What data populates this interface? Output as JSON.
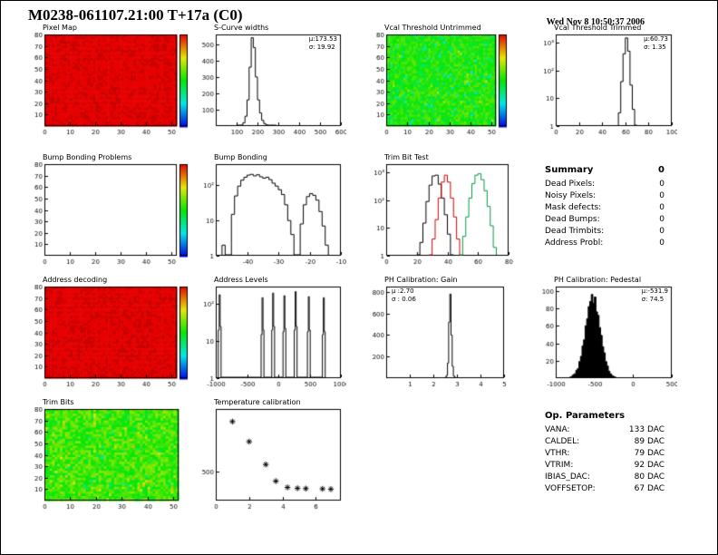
{
  "page": {
    "title": "M0238-061107.21:00 T+17a (C0)",
    "date": "Wed Nov  8 10:50:37 2006"
  },
  "summary": {
    "header": "Summary",
    "total": "0",
    "items": [
      {
        "label": "Dead Pixels:",
        "value": "0"
      },
      {
        "label": "Noisy Pixels:",
        "value": "0"
      },
      {
        "label": "Mask defects:",
        "value": "0"
      },
      {
        "label": "Dead Bumps:",
        "value": "0"
      },
      {
        "label": "Dead Trimbits:",
        "value": "0"
      },
      {
        "label": "Address Probl:",
        "value": "0"
      }
    ]
  },
  "op_parameters": {
    "header": "Op. Parameters",
    "items": [
      {
        "label": "VANA:",
        "value": "133 DAC"
      },
      {
        "label": "CALDEL:",
        "value": "89 DAC"
      },
      {
        "label": "VTHR:",
        "value": "79 DAC"
      },
      {
        "label": "VTRIM:",
        "value": "92 DAC"
      },
      {
        "label": "IBIAS_DAC:",
        "value": "80 DAC"
      },
      {
        "label": "VOFFSETOP:",
        "value": "67 DAC"
      }
    ]
  },
  "chart_data": [
    {
      "id": "pixel_map",
      "title": "Pixel Map",
      "type": "heatmap",
      "fill": "uniform-red",
      "xlim": [
        0,
        52
      ],
      "ylim": [
        0,
        80
      ],
      "xticks": [
        0,
        10,
        20,
        30,
        40,
        50
      ],
      "yticks": [
        10,
        20,
        30,
        40,
        50,
        60,
        70,
        80
      ],
      "colorbar": true
    },
    {
      "id": "scurve_widths",
      "title": "S-Curve widths",
      "type": "hist",
      "logy": false,
      "xlim": [
        0,
        600
      ],
      "ylim": [
        0,
        560
      ],
      "xticks": [
        100,
        200,
        300,
        400,
        500,
        600
      ],
      "yticks": [
        100,
        200,
        300,
        400,
        500
      ],
      "bin_width": 10,
      "bins": [
        [
          100,
          1
        ],
        [
          110,
          2
        ],
        [
          120,
          6
        ],
        [
          130,
          20
        ],
        [
          140,
          60
        ],
        [
          150,
          160
        ],
        [
          160,
          360
        ],
        [
          170,
          540
        ],
        [
          180,
          480
        ],
        [
          190,
          300
        ],
        [
          200,
          160
        ],
        [
          210,
          80
        ],
        [
          220,
          35
        ],
        [
          230,
          15
        ],
        [
          240,
          7
        ],
        [
          250,
          3
        ],
        [
          260,
          2
        ],
        [
          270,
          1
        ],
        [
          280,
          1
        ]
      ],
      "stats": {
        "mu": "μ:173.53",
        "sigma": "σ: 19.92"
      }
    },
    {
      "id": "vcal_untrimmed",
      "title": "Vcal Threshold Untrimmed",
      "type": "heatmap",
      "fill": "noise-green",
      "xlim": [
        0,
        52
      ],
      "ylim": [
        0,
        80
      ],
      "xticks": [
        0,
        10,
        20,
        30,
        40,
        50
      ],
      "yticks": [
        10,
        20,
        30,
        40,
        50,
        60,
        70,
        80
      ],
      "colorbar": true
    },
    {
      "id": "vcal_trimmed",
      "title": "Vcal Threshold Trimmed",
      "type": "hist",
      "logy": true,
      "xlim": [
        0,
        100
      ],
      "ylim": [
        1,
        2000
      ],
      "xticks": [
        0,
        20,
        40,
        60,
        80,
        100
      ],
      "yticks": [
        1,
        10,
        100,
        1000
      ],
      "bin_width": 2,
      "bins": [
        [
          54,
          3
        ],
        [
          56,
          40
        ],
        [
          58,
          400
        ],
        [
          60,
          1500
        ],
        [
          62,
          500
        ],
        [
          64,
          30
        ],
        [
          66,
          4
        ],
        [
          68,
          1
        ]
      ],
      "stats": {
        "mu": "μ:60.73",
        "sigma": "σ: 1.35"
      }
    },
    {
      "id": "bump_problems",
      "title": "Bump Bonding Problems",
      "type": "heatmap",
      "fill": "empty",
      "xlim": [
        0,
        52
      ],
      "ylim": [
        0,
        80
      ],
      "xticks": [
        0,
        10,
        20,
        30,
        40,
        50
      ],
      "yticks": [
        10,
        20,
        30,
        40,
        50,
        60,
        70,
        80
      ],
      "colorbar": true
    },
    {
      "id": "bump_bonding",
      "title": "Bump Bonding",
      "type": "hist",
      "logy": true,
      "xlim": [
        -50,
        -10
      ],
      "ylim": [
        1,
        400
      ],
      "xticks": [
        -40,
        -30,
        -20,
        -10
      ],
      "yticks": [
        1,
        10,
        100
      ],
      "bin_width": 1,
      "bins": [
        [
          -48,
          2
        ],
        [
          -45,
          15
        ],
        [
          -44,
          50
        ],
        [
          -43,
          95
        ],
        [
          -42,
          140
        ],
        [
          -41,
          170
        ],
        [
          -40,
          195
        ],
        [
          -39,
          205
        ],
        [
          -38,
          185
        ],
        [
          -37,
          200
        ],
        [
          -36,
          175
        ],
        [
          -35,
          160
        ],
        [
          -34,
          170
        ],
        [
          -33,
          145
        ],
        [
          -32,
          115
        ],
        [
          -31,
          95
        ],
        [
          -30,
          75
        ],
        [
          -29,
          55
        ],
        [
          -28,
          28
        ],
        [
          -27,
          10
        ],
        [
          -26,
          4
        ],
        [
          -23,
          8
        ],
        [
          -22,
          28
        ],
        [
          -21,
          48
        ],
        [
          -20,
          58
        ],
        [
          -19,
          52
        ],
        [
          -18,
          38
        ],
        [
          -17,
          18
        ],
        [
          -16,
          7
        ],
        [
          -15,
          2
        ]
      ]
    },
    {
      "id": "trim_bit_test",
      "title": "Trim Bit Test",
      "type": "hist-multi",
      "logy": true,
      "xlim": [
        0,
        80
      ],
      "ylim": [
        1,
        2000
      ],
      "xticks": [
        0,
        20,
        40,
        60,
        80
      ],
      "yticks": [
        1,
        10,
        100,
        1000
      ],
      "bin_width": 2,
      "series": [
        {
          "color": "#000000",
          "bins": [
            [
              20,
              1
            ],
            [
              22,
              3
            ],
            [
              24,
              15
            ],
            [
              26,
              90
            ],
            [
              28,
              350
            ],
            [
              30,
              750
            ],
            [
              32,
              800
            ],
            [
              34,
              380
            ],
            [
              36,
              120
            ],
            [
              38,
              30
            ],
            [
              40,
              6
            ],
            [
              42,
              1
            ]
          ]
        },
        {
          "color": "#cc0000",
          "bins": [
            [
              28,
              1
            ],
            [
              30,
              4
            ],
            [
              32,
              20
            ],
            [
              34,
              120
            ],
            [
              36,
              450
            ],
            [
              38,
              800
            ],
            [
              40,
              450
            ],
            [
              42,
              120
            ],
            [
              44,
              25
            ],
            [
              46,
              4
            ]
          ]
        },
        {
          "color": "#009944",
          "bins": [
            [
              48,
              1
            ],
            [
              50,
              5
            ],
            [
              52,
              25
            ],
            [
              54,
              120
            ],
            [
              56,
              400
            ],
            [
              58,
              800
            ],
            [
              60,
              900
            ],
            [
              62,
              550
            ],
            [
              64,
              220
            ],
            [
              66,
              60
            ],
            [
              68,
              12
            ],
            [
              70,
              2
            ]
          ]
        }
      ]
    },
    {
      "id": "address_decoding",
      "title": "Address decoding",
      "type": "heatmap",
      "fill": "uniform-red",
      "xlim": [
        0,
        52
      ],
      "ylim": [
        0,
        80
      ],
      "xticks": [
        0,
        10,
        20,
        30,
        40,
        50
      ],
      "yticks": [
        10,
        20,
        30,
        40,
        50,
        60,
        70,
        80
      ],
      "colorbar": true
    },
    {
      "id": "address_levels",
      "title": "Address Levels",
      "type": "hist",
      "logy": true,
      "xlim": [
        -1000,
        1000
      ],
      "ylim": [
        1,
        300
      ],
      "xticks": [
        -1000,
        -500,
        0,
        500,
        1000
      ],
      "yticks": [
        1,
        10,
        100
      ],
      "bin_width": 15,
      "bins": [
        [
          -960,
          20
        ],
        [
          -945,
          180
        ],
        [
          -930,
          25
        ],
        [
          -275,
          15
        ],
        [
          -260,
          150
        ],
        [
          -245,
          20
        ],
        [
          -105,
          20
        ],
        [
          -90,
          200
        ],
        [
          -75,
          25
        ],
        [
          75,
          18
        ],
        [
          90,
          170
        ],
        [
          105,
          22
        ],
        [
          255,
          20
        ],
        [
          270,
          220
        ],
        [
          285,
          25
        ],
        [
          465,
          18
        ],
        [
          480,
          160
        ],
        [
          495,
          20
        ],
        [
          705,
          15
        ],
        [
          720,
          150
        ],
        [
          735,
          18
        ]
      ]
    },
    {
      "id": "ph_gain",
      "title": "PH Calibration: Gain",
      "type": "hist",
      "logy": false,
      "xlim": [
        0,
        5
      ],
      "ylim": [
        0,
        850
      ],
      "xticks": [
        1,
        2,
        3,
        4,
        5
      ],
      "yticks": [
        200,
        400,
        600,
        800
      ],
      "bin_width": 0.05,
      "bins": [
        [
          2.5,
          4
        ],
        [
          2.55,
          25
        ],
        [
          2.6,
          140
        ],
        [
          2.65,
          520
        ],
        [
          2.7,
          780
        ],
        [
          2.75,
          400
        ],
        [
          2.8,
          110
        ],
        [
          2.85,
          20
        ],
        [
          2.9,
          4
        ]
      ],
      "stats": {
        "mu": "μ :2.70",
        "sigma": "σ : 0.06"
      }
    },
    {
      "id": "ph_pedestal",
      "title": "PH Calibration: Pedestal",
      "type": "hist",
      "logy": false,
      "fill_color": "#000000",
      "xlim": [
        -1000,
        500
      ],
      "ylim": [
        0,
        105
      ],
      "xticks": [
        -1000,
        -500,
        0,
        500
      ],
      "yticks": [
        20,
        40,
        60,
        80,
        100
      ],
      "bin_width": 20,
      "bins": [
        [
          -820,
          1
        ],
        [
          -800,
          2
        ],
        [
          -780,
          4
        ],
        [
          -760,
          5
        ],
        [
          -740,
          9
        ],
        [
          -720,
          11
        ],
        [
          -700,
          19
        ],
        [
          -680,
          25
        ],
        [
          -660,
          37
        ],
        [
          -640,
          44
        ],
        [
          -620,
          60
        ],
        [
          -600,
          68
        ],
        [
          -580,
          82
        ],
        [
          -560,
          88
        ],
        [
          -540,
          96
        ],
        [
          -520,
          86
        ],
        [
          -500,
          93
        ],
        [
          -480,
          76
        ],
        [
          -460,
          72
        ],
        [
          -440,
          58
        ],
        [
          -420,
          49
        ],
        [
          -400,
          36
        ],
        [
          -380,
          29
        ],
        [
          -360,
          19
        ],
        [
          -340,
          14
        ],
        [
          -320,
          8
        ],
        [
          -300,
          5
        ],
        [
          -280,
          3
        ],
        [
          -260,
          2
        ],
        [
          -240,
          1
        ]
      ],
      "stats": {
        "mu": "μ:-531.9",
        "sigma": "σ: 74.5"
      }
    },
    {
      "id": "trim_bits_map",
      "title": "Trim Bits",
      "type": "heatmap",
      "fill": "noise-green-bright",
      "xlim": [
        0,
        52
      ],
      "ylim": [
        0,
        80
      ],
      "xticks": [
        0,
        10,
        20,
        30,
        40,
        50
      ],
      "yticks": [
        10,
        20,
        30,
        40,
        50,
        60,
        70,
        80
      ],
      "colorbar": false
    },
    {
      "id": "temperature",
      "title": "Temperature calibration",
      "type": "scatter",
      "marker": "asterisk",
      "xlim": [
        0,
        7.5
      ],
      "ylim": [
        0,
        1600
      ],
      "xticks": [
        0,
        2,
        4,
        6
      ],
      "yticks": [
        500
      ],
      "points": [
        [
          1,
          1380
        ],
        [
          2,
          1030
        ],
        [
          3,
          630
        ],
        [
          3.6,
          340
        ],
        [
          4.3,
          230
        ],
        [
          4.9,
          215
        ],
        [
          5.4,
          210
        ],
        [
          6.4,
          205
        ],
        [
          6.9,
          200
        ]
      ]
    }
  ]
}
